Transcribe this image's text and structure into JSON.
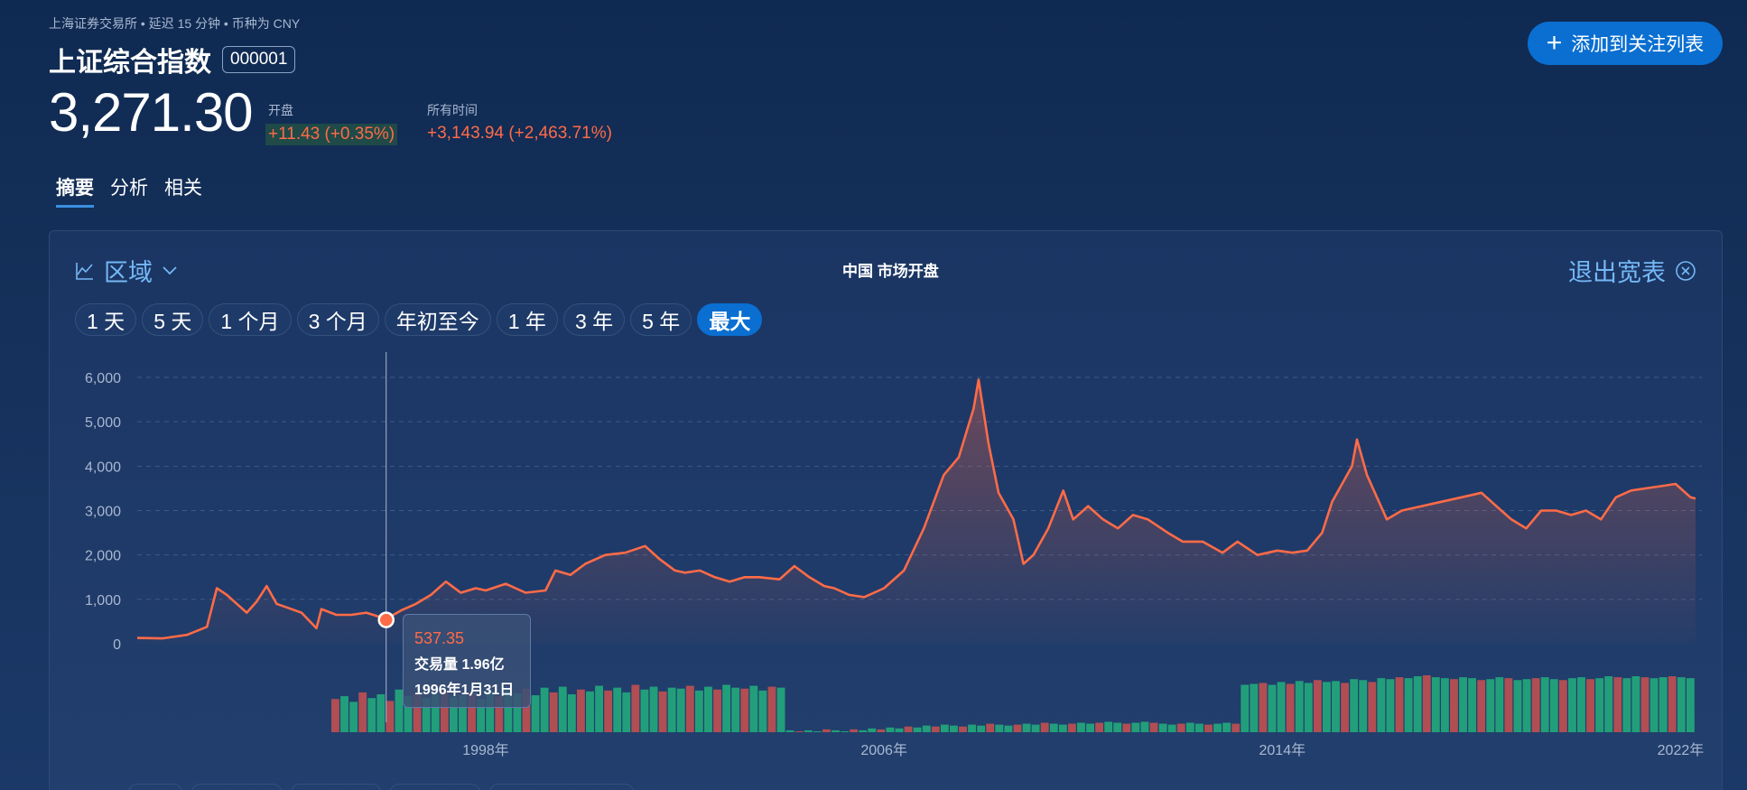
{
  "header": {
    "meta": "上海证券交易所 • 延迟 15 分钟 • 币种为 CNY",
    "title": "上证综合指数",
    "code": "000001",
    "add_button": "添加到关注列表",
    "price": "3,271.30",
    "open_label": "开盘",
    "open_change": "+11.43 (+0.35%)",
    "alltime_label": "所有时间",
    "alltime_change": "+3,143.94 (+2,463.71%)"
  },
  "tabs": [
    "摘要",
    "分析",
    "相关"
  ],
  "panel": {
    "view_label": "区域",
    "market_status": "中国 市场开盘",
    "exit_label": "退出宽表",
    "ranges": [
      "1 天",
      "5 天",
      "1 个月",
      "3 个月",
      "年初至今",
      "1 年",
      "3 年",
      "5 年",
      "最大"
    ],
    "active_range": "最大"
  },
  "tooltip": {
    "price": "537.35",
    "volume": "交易量 1.96亿",
    "date": "1996年1月31日"
  },
  "colors": {
    "line": "#ff6b47",
    "accent": "#0a6fd1",
    "vol_up": "#22b07d",
    "vol_down": "#c9514f"
  },
  "chart_data": {
    "type": "area",
    "x_labels": [
      "1998年",
      "2006年",
      "2014年",
      "2022年"
    ],
    "y_ticks": [
      "6,000",
      "5,000",
      "4,000",
      "3,000",
      "2,000",
      "1,000",
      "0"
    ],
    "ylim": [
      0,
      6000
    ],
    "series": [
      {
        "values": [
          [
            1991.0,
            130
          ],
          [
            1991.5,
            120
          ],
          [
            1992.0,
            200
          ],
          [
            1992.4,
            380
          ],
          [
            1992.6,
            1250
          ],
          [
            1992.8,
            1100
          ],
          [
            1993.0,
            900
          ],
          [
            1993.2,
            700
          ],
          [
            1993.4,
            950
          ],
          [
            1993.6,
            1300
          ],
          [
            1993.8,
            900
          ],
          [
            1994.0,
            820
          ],
          [
            1994.3,
            700
          ],
          [
            1994.6,
            350
          ],
          [
            1994.7,
            780
          ],
          [
            1995.0,
            650
          ],
          [
            1995.3,
            650
          ],
          [
            1995.6,
            700
          ],
          [
            1996.0,
            560
          ],
          [
            1996.3,
            750
          ],
          [
            1996.6,
            900
          ],
          [
            1996.9,
            1100
          ],
          [
            1997.2,
            1400
          ],
          [
            1997.5,
            1150
          ],
          [
            1997.8,
            1250
          ],
          [
            1998.0,
            1200
          ],
          [
            1998.4,
            1350
          ],
          [
            1998.8,
            1150
          ],
          [
            1999.2,
            1200
          ],
          [
            1999.4,
            1650
          ],
          [
            1999.7,
            1550
          ],
          [
            2000.0,
            1800
          ],
          [
            2000.4,
            2000
          ],
          [
            2000.8,
            2050
          ],
          [
            2001.2,
            2200
          ],
          [
            2001.5,
            1900
          ],
          [
            2001.8,
            1650
          ],
          [
            2002.0,
            1600
          ],
          [
            2002.3,
            1650
          ],
          [
            2002.6,
            1500
          ],
          [
            2002.9,
            1400
          ],
          [
            2003.2,
            1500
          ],
          [
            2003.5,
            1500
          ],
          [
            2003.9,
            1450
          ],
          [
            2004.2,
            1750
          ],
          [
            2004.5,
            1500
          ],
          [
            2004.8,
            1300
          ],
          [
            2005.0,
            1250
          ],
          [
            2005.3,
            1100
          ],
          [
            2005.6,
            1050
          ],
          [
            2006.0,
            1250
          ],
          [
            2006.4,
            1650
          ],
          [
            2006.8,
            2600
          ],
          [
            2007.2,
            3800
          ],
          [
            2007.5,
            4200
          ],
          [
            2007.8,
            5300
          ],
          [
            2007.9,
            5950
          ],
          [
            2008.1,
            4500
          ],
          [
            2008.3,
            3400
          ],
          [
            2008.6,
            2800
          ],
          [
            2008.8,
            1800
          ],
          [
            2009.0,
            2000
          ],
          [
            2009.3,
            2600
          ],
          [
            2009.6,
            3450
          ],
          [
            2009.8,
            2800
          ],
          [
            2010.1,
            3100
          ],
          [
            2010.4,
            2800
          ],
          [
            2010.7,
            2600
          ],
          [
            2011.0,
            2900
          ],
          [
            2011.3,
            2800
          ],
          [
            2011.7,
            2500
          ],
          [
            2012.0,
            2300
          ],
          [
            2012.4,
            2300
          ],
          [
            2012.8,
            2050
          ],
          [
            2013.1,
            2300
          ],
          [
            2013.5,
            2000
          ],
          [
            2013.9,
            2100
          ],
          [
            2014.2,
            2050
          ],
          [
            2014.5,
            2100
          ],
          [
            2014.8,
            2500
          ],
          [
            2015.0,
            3200
          ],
          [
            2015.4,
            4000
          ],
          [
            2015.5,
            4600
          ],
          [
            2015.7,
            3800
          ],
          [
            2015.9,
            3300
          ],
          [
            2016.1,
            2800
          ],
          [
            2016.4,
            3000
          ],
          [
            2016.8,
            3100
          ],
          [
            2017.2,
            3200
          ],
          [
            2017.6,
            3300
          ],
          [
            2018.0,
            3400
          ],
          [
            2018.3,
            3100
          ],
          [
            2018.6,
            2800
          ],
          [
            2018.9,
            2600
          ],
          [
            2019.2,
            3000
          ],
          [
            2019.5,
            3000
          ],
          [
            2019.8,
            2900
          ],
          [
            2020.1,
            3000
          ],
          [
            2020.4,
            2800
          ],
          [
            2020.7,
            3300
          ],
          [
            2021.0,
            3450
          ],
          [
            2021.3,
            3500
          ],
          [
            2021.6,
            3550
          ],
          [
            2021.9,
            3600
          ],
          [
            2022.2,
            3300
          ],
          [
            2022.3,
            3271
          ]
        ]
      }
    ],
    "volume": [
      0.35,
      0.38,
      0.32,
      0.42,
      0.36,
      0.4,
      0.33,
      0.45,
      0.38,
      0.41,
      0.36,
      0.4,
      0.44,
      0.37,
      0.39,
      0.42,
      0.35,
      0.43,
      0.38,
      0.45,
      0.41,
      0.46,
      0.39,
      0.47,
      0.42,
      0.48,
      0.4,
      0.45,
      0.43,
      0.49,
      0.44,
      0.47,
      0.42,
      0.5,
      0.45,
      0.48,
      0.43,
      0.47,
      0.46,
      0.49,
      0.44,
      0.48,
      0.45,
      0.5,
      0.47,
      0.46,
      0.49,
      0.44,
      0.48,
      0.47,
      0.02,
      0.01,
      0.02,
      0.01,
      0.03,
      0.02,
      0.01,
      0.03,
      0.02,
      0.04,
      0.03,
      0.05,
      0.04,
      0.06,
      0.05,
      0.07,
      0.06,
      0.08,
      0.07,
      0.06,
      0.08,
      0.07,
      0.09,
      0.08,
      0.07,
      0.08,
      0.09,
      0.08,
      0.1,
      0.09,
      0.08,
      0.09,
      0.1,
      0.09,
      0.1,
      0.11,
      0.1,
      0.09,
      0.1,
      0.11,
      0.1,
      0.09,
      0.08,
      0.09,
      0.1,
      0.09,
      0.08,
      0.09,
      0.1,
      0.09,
      0.5,
      0.51,
      0.52,
      0.5,
      0.53,
      0.51,
      0.54,
      0.52,
      0.55,
      0.53,
      0.54,
      0.52,
      0.56,
      0.55,
      0.53,
      0.57,
      0.56,
      0.58,
      0.57,
      0.59,
      0.6,
      0.58,
      0.57,
      0.56,
      0.58,
      0.57,
      0.55,
      0.56,
      0.58,
      0.57,
      0.55,
      0.56,
      0.57,
      0.58,
      0.56,
      0.55,
      0.57,
      0.58,
      0.56,
      0.57,
      0.59,
      0.58,
      0.57,
      0.59,
      0.58,
      0.57,
      0.58,
      0.59,
      0.58,
      0.57
    ]
  }
}
